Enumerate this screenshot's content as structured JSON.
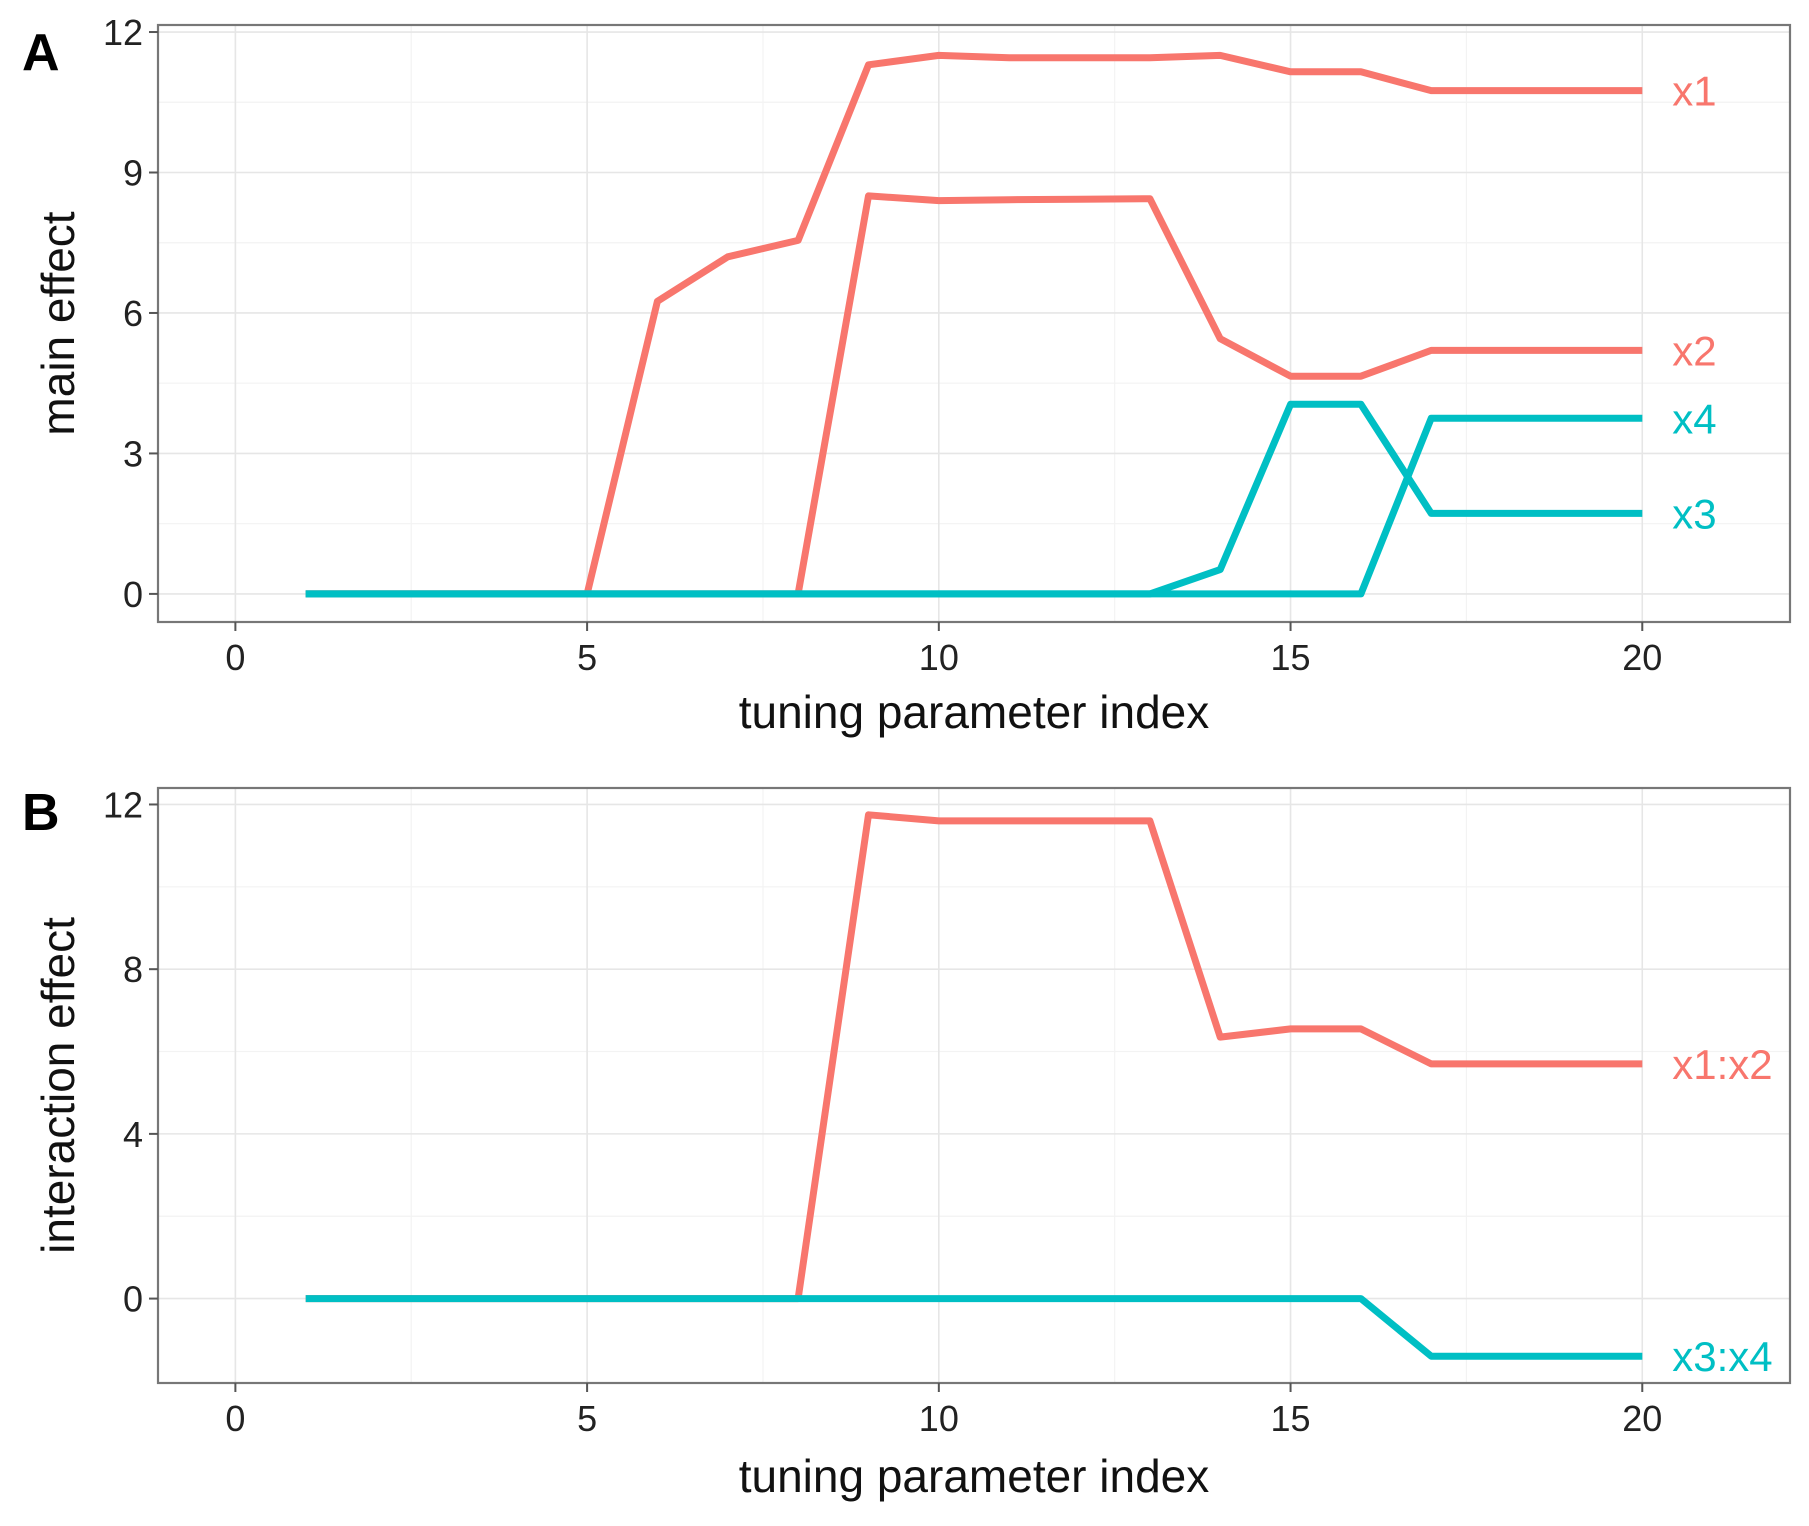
{
  "colors": {
    "red": "#F8766D",
    "teal": "#00BFC4"
  },
  "chart_data": [
    {
      "type": "line",
      "panel_label": "A",
      "title": "",
      "xlabel": "tuning parameter index",
      "ylabel": "main effect",
      "xlim": [
        -1.1,
        22.1
      ],
      "ylim": [
        -0.6,
        12.15
      ],
      "xticks": [
        0,
        5,
        10,
        15,
        20
      ],
      "yticks": [
        0,
        3,
        6,
        9,
        12
      ],
      "xtick_labels": [
        "0",
        "5",
        "10",
        "15",
        "20"
      ],
      "ytick_labels": [
        "0",
        "3",
        "6",
        "9",
        "12"
      ],
      "grid": true,
      "legend": "direct labels at right end of lines",
      "x": [
        1,
        2,
        3,
        4,
        5,
        6,
        7,
        8,
        9,
        10,
        11,
        12,
        13,
        14,
        15,
        16,
        17,
        18,
        19,
        20
      ],
      "series": [
        {
          "name": "x1",
          "color": "#F8766D",
          "values": [
            0,
            0,
            0,
            0,
            0,
            6.25,
            7.2,
            7.55,
            11.3,
            11.5,
            11.45,
            11.45,
            11.45,
            11.5,
            11.15,
            11.15,
            10.75,
            10.75,
            10.75,
            10.75
          ]
        },
        {
          "name": "x2",
          "color": "#F8766D",
          "values": [
            0,
            0,
            0,
            0,
            0,
            0,
            0,
            0,
            8.5,
            8.4,
            8.42,
            8.43,
            8.44,
            5.45,
            4.65,
            4.65,
            5.2,
            5.2,
            5.2,
            5.2
          ]
        },
        {
          "name": "x4",
          "color": "#00BFC4",
          "values": [
            0,
            0,
            0,
            0,
            0,
            0,
            0,
            0,
            0,
            0,
            0,
            0,
            0,
            0,
            0,
            0,
            3.75,
            3.75,
            3.75,
            3.75
          ]
        },
        {
          "name": "x3",
          "color": "#00BFC4",
          "values": [
            0,
            0,
            0,
            0,
            0,
            0,
            0,
            0,
            0,
            0,
            0,
            0,
            0,
            0.52,
            4.05,
            4.05,
            1.72,
            1.72,
            1.72,
            1.72
          ]
        }
      ]
    },
    {
      "type": "line",
      "panel_label": "B",
      "title": "",
      "xlabel": "tuning parameter index",
      "ylabel": "interaction effect",
      "xlim": [
        -1.1,
        22.1
      ],
      "ylim": [
        -2.05,
        12.4
      ],
      "xticks": [
        0,
        5,
        10,
        15,
        20
      ],
      "yticks": [
        0,
        4,
        8,
        12
      ],
      "xtick_labels": [
        "0",
        "5",
        "10",
        "15",
        "20"
      ],
      "ytick_labels": [
        "0",
        "4",
        "8",
        "12"
      ],
      "grid": true,
      "legend": "direct labels at right end of lines",
      "x": [
        1,
        2,
        3,
        4,
        5,
        6,
        7,
        8,
        9,
        10,
        11,
        12,
        13,
        14,
        15,
        16,
        17,
        18,
        19,
        20
      ],
      "series": [
        {
          "name": "x1:x2",
          "color": "#F8766D",
          "values": [
            0,
            0,
            0,
            0,
            0,
            0,
            0,
            0,
            11.75,
            11.6,
            11.6,
            11.6,
            11.6,
            6.35,
            6.55,
            6.55,
            5.7,
            5.7,
            5.7,
            5.7
          ]
        },
        {
          "name": "x3:x4",
          "color": "#00BFC4",
          "values": [
            0,
            0,
            0,
            0,
            0,
            0,
            0,
            0,
            0,
            0,
            0,
            0,
            0,
            0,
            0,
            0,
            -1.4,
            -1.4,
            -1.4,
            -1.4
          ]
        }
      ]
    }
  ]
}
